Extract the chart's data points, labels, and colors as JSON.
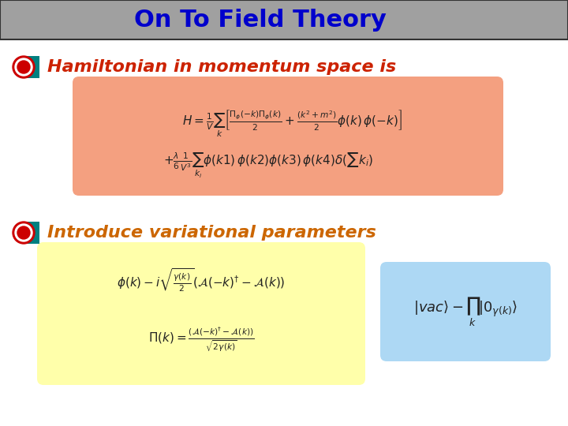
{
  "title": "On To Field Theory",
  "title_color": "#0000cc",
  "title_bg_color": "#a0a0a0",
  "bg_color": "#ffffff",
  "bullet1_text": "Hamiltonian in momentum space is",
  "bullet1_color": "#cc2200",
  "eq1_box_color": "#f4a080",
  "eq1_line1": "H = \\frac{1}{V}\\sum_{k}\\left[\\frac{\\Pi_{\\phi}(-k)\\Pi_{\\phi}(k)}{2} + \\frac{(k^2+m^2)}{2}\\phi(k)\\,\\phi(-k)\\right]",
  "eq1_line2": "+\\frac{\\lambda}{6}\\frac{1}{V^3}\\sum_{k_i}\\phi(k1)\\,\\phi(k2)\\phi(k3)\\,\\phi(k4)\\delta(\\sum k_i)",
  "bullet2_text": "Introduce variational parameters",
  "bullet2_color": "#cc6600",
  "eq2_box_color": "#ffffaa",
  "eq2_line1": "\\phi(k) - i\\sqrt{\\frac{\\gamma(k)}{2}}(\\mathcal{A}(-k)^{\\dagger} - \\mathcal{A}(k))",
  "eq2_line2": "\\Pi(k) = \\frac{(\\mathcal{A}(-k)^{\\dagger} - \\mathcal{A}(k))}{\\sqrt{2\\gamma(k)}}",
  "eq3_box_color": "#add8f4",
  "eq3": "|vac\\rangle - \\prod_{k}|0_{\\gamma(k)}\\rangle"
}
